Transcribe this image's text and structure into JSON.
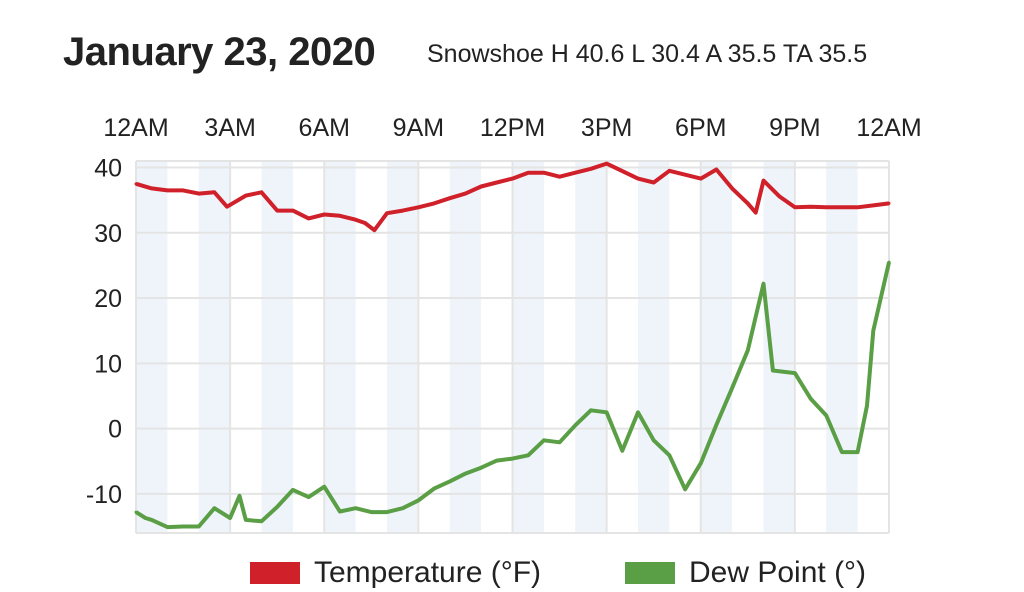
{
  "header": {
    "title": "January 23, 2020",
    "subtitle": "Snowshoe H 40.6 L 30.4 A 35.5 TA 35.5"
  },
  "chart_data": {
    "type": "line",
    "title": "January 23, 2020",
    "subtitle": "Snowshoe H 40.6 L 30.4 A 35.5 TA 35.5",
    "xlabel": "",
    "ylabel": "",
    "x_ticks": [
      {
        "hour": 0,
        "label": "12AM"
      },
      {
        "hour": 3,
        "label": "3AM"
      },
      {
        "hour": 6,
        "label": "6AM"
      },
      {
        "hour": 9,
        "label": "9AM"
      },
      {
        "hour": 12,
        "label": "12PM"
      },
      {
        "hour": 15,
        "label": "3PM"
      },
      {
        "hour": 18,
        "label": "6PM"
      },
      {
        "hour": 21,
        "label": "9PM"
      },
      {
        "hour": 24,
        "label": "12AM"
      }
    ],
    "y_ticks": [
      40,
      30,
      20,
      10,
      0,
      -10
    ],
    "xlim": [
      0,
      24
    ],
    "ylim": [
      -16,
      41
    ],
    "grid": true,
    "shaded_hours": [
      0,
      2,
      4,
      6,
      8,
      10,
      12,
      14,
      16,
      18,
      20,
      22
    ],
    "colors": {
      "band": "#eef4fa",
      "grid": "#e4e4e4"
    },
    "legend_position": "bottom",
    "series": [
      {
        "name": "Temperature (°F)",
        "color": "#d0202a",
        "x": [
          0,
          0.5,
          1,
          1.5,
          2,
          2.5,
          2.9,
          3.5,
          4,
          4.5,
          5,
          5.5,
          6,
          6.5,
          7,
          7.3,
          7.6,
          8,
          8.5,
          9,
          9.5,
          10,
          10.5,
          11,
          11.5,
          12,
          12.5,
          13,
          13.5,
          14,
          14.5,
          15,
          16,
          16.5,
          17,
          17.5,
          18,
          18.5,
          19,
          19.5,
          19.75,
          20,
          20.5,
          21,
          21.5,
          22,
          22.5,
          23,
          23.5,
          24
        ],
        "values": [
          37.5,
          36.8,
          36.5,
          36.5,
          36,
          36.2,
          34,
          35.7,
          36.2,
          33.4,
          33.4,
          32.2,
          32.8,
          32.6,
          32,
          31.5,
          30.4,
          33,
          33.4,
          33.9,
          34.5,
          35.3,
          36,
          37.1,
          37.7,
          38.3,
          39.2,
          39.2,
          38.6,
          39.2,
          39.8,
          40.6,
          38.3,
          37.7,
          39.5,
          38.9,
          38.3,
          39.7,
          36.8,
          34.5,
          33.1,
          38,
          35.6,
          33.9,
          34,
          33.9,
          33.9,
          33.9,
          34.2,
          34.5
        ]
      },
      {
        "name": "Dew Point (°)",
        "color": "#5a9e45",
        "x": [
          0,
          0.3,
          0.5,
          1,
          1.5,
          2,
          2.5,
          3,
          3.3,
          3.5,
          4,
          4.5,
          5,
          5.5,
          6,
          6.5,
          7,
          7.5,
          8,
          8.5,
          9,
          9.5,
          10,
          10.5,
          11,
          11.5,
          12,
          12.5,
          13,
          13.5,
          14,
          14.5,
          15,
          15.5,
          16,
          16.5,
          17,
          17.5,
          18,
          18.5,
          19,
          19.5,
          20,
          20.3,
          21,
          21.5,
          22,
          22.5,
          23,
          23.3,
          23.5,
          24
        ],
        "values": [
          -12.8,
          -13.7,
          -14,
          -15.1,
          -15,
          -15,
          -12.2,
          -13.7,
          -10.3,
          -14,
          -14.2,
          -12,
          -9.4,
          -10.5,
          -8.9,
          -12.7,
          -12.2,
          -12.8,
          -12.8,
          -12.2,
          -11,
          -9.2,
          -8.1,
          -6.9,
          -6,
          -4.9,
          -4.6,
          -4.1,
          -1.8,
          -2.1,
          0.5,
          2.8,
          2.5,
          -3.4,
          2.5,
          -1.8,
          -4.1,
          -9.3,
          -5.3,
          0.6,
          6.2,
          12,
          22.2,
          8.9,
          8.5,
          4.6,
          2,
          -3.6,
          -3.6,
          3.5,
          15,
          25.5
        ]
      }
    ]
  }
}
